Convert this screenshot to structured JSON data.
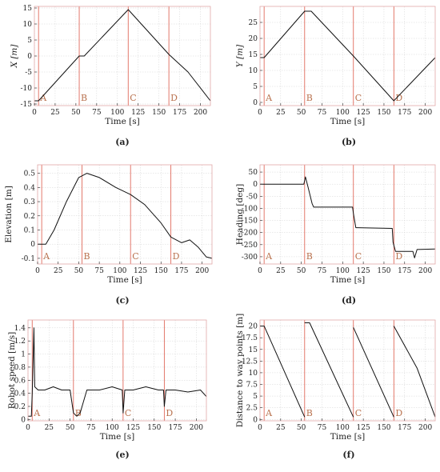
{
  "figure": {
    "panels": [
      {
        "id": "a",
        "caption": "(a)"
      },
      {
        "id": "b",
        "caption": "(b)"
      },
      {
        "id": "c",
        "caption": "(c)"
      },
      {
        "id": "d",
        "caption": "(d)"
      },
      {
        "id": "e",
        "caption": "(e)"
      },
      {
        "id": "f",
        "caption": "(f)"
      }
    ],
    "colors": {
      "series": "#111111",
      "marker_line": "#e06a5c",
      "marker_text": "#b9724f",
      "grid": "#d4d4d4",
      "frame": "#e2a8a8",
      "axis_text": "#222222"
    }
  },
  "chart_data": [
    {
      "panel": "a",
      "type": "line",
      "xlabel": "Time [s]",
      "ylabel": "X [m]",
      "xlim": [
        0,
        212
      ],
      "ylim": [
        -15.5,
        15.5
      ],
      "xticks": [
        0,
        25,
        50,
        75,
        100,
        125,
        150,
        175,
        200
      ],
      "yticks": [
        -15,
        -10,
        -5,
        0,
        5,
        10,
        15
      ],
      "grid": true,
      "markers": [
        {
          "label": "A",
          "x": 5
        },
        {
          "label": "B",
          "x": 54
        },
        {
          "label": "C",
          "x": 113
        },
        {
          "label": "D",
          "x": 162
        }
      ],
      "series": [
        {
          "x": [
            0,
            5,
            54,
            60,
            113,
            162,
            185,
            212
          ],
          "y": [
            -14,
            -14,
            0,
            0,
            14.5,
            0.5,
            -5,
            -14
          ]
        }
      ]
    },
    {
      "panel": "b",
      "type": "line",
      "xlabel": "Time [s]",
      "ylabel": "Y [m]",
      "xlim": [
        0,
        212
      ],
      "ylim": [
        -1,
        30
      ],
      "xticks": [
        0,
        25,
        50,
        75,
        100,
        125,
        150,
        175,
        200
      ],
      "yticks": [
        0,
        5,
        10,
        15,
        20,
        25
      ],
      "grid": true,
      "markers": [
        {
          "label": "A",
          "x": 5
        },
        {
          "label": "B",
          "x": 54
        },
        {
          "label": "C",
          "x": 113
        },
        {
          "label": "D",
          "x": 162
        }
      ],
      "series": [
        {
          "x": [
            0,
            5,
            54,
            62,
            113,
            162,
            212
          ],
          "y": [
            14,
            14,
            28.5,
            28.5,
            14.5,
            0.5,
            14
          ]
        }
      ]
    },
    {
      "panel": "c",
      "type": "line",
      "xlabel": "Time [s]",
      "ylabel": "Elevation [m]",
      "xlim": [
        0,
        212
      ],
      "ylim": [
        -0.14,
        0.56
      ],
      "xticks": [
        0,
        25,
        50,
        75,
        100,
        125,
        150,
        175,
        200
      ],
      "yticks": [
        -0.1,
        0,
        0.1,
        0.2,
        0.3,
        0.4,
        0.5
      ],
      "grid": true,
      "markers": [
        {
          "label": "A",
          "x": 5
        },
        {
          "label": "B",
          "x": 54
        },
        {
          "label": "C",
          "x": 113
        },
        {
          "label": "D",
          "x": 162
        }
      ],
      "series": [
        {
          "x": [
            0,
            10,
            20,
            35,
            50,
            60,
            75,
            95,
            113,
            130,
            150,
            162,
            175,
            185,
            195,
            205,
            212
          ],
          "y": [
            0,
            0,
            0.1,
            0.3,
            0.47,
            0.5,
            0.47,
            0.4,
            0.35,
            0.28,
            0.15,
            0.05,
            0.01,
            0.03,
            -0.02,
            -0.09,
            -0.1
          ]
        }
      ]
    },
    {
      "panel": "d",
      "type": "line",
      "xlabel": "Time [s]",
      "ylabel": "Heading [deg]",
      "xlim": [
        0,
        212
      ],
      "ylim": [
        -330,
        80
      ],
      "xticks": [
        0,
        25,
        50,
        75,
        100,
        125,
        150,
        175,
        200
      ],
      "yticks": [
        -300,
        -250,
        -200,
        -150,
        -100,
        -50,
        0,
        50
      ],
      "grid": true,
      "markers": [
        {
          "label": "A",
          "x": 5
        },
        {
          "label": "B",
          "x": 54
        },
        {
          "label": "C",
          "x": 113
        },
        {
          "label": "D",
          "x": 162
        }
      ],
      "series": [
        {
          "x": [
            0,
            53,
            55,
            58,
            63,
            65,
            112,
            113,
            116,
            118,
            160,
            161,
            164,
            185,
            187,
            190,
            212
          ],
          "y": [
            0,
            0,
            30,
            -10,
            -80,
            -95,
            -95,
            -120,
            -180,
            -180,
            -183,
            -240,
            -278,
            -278,
            -305,
            -270,
            -268
          ]
        }
      ]
    },
    {
      "panel": "e",
      "type": "line",
      "xlabel": "Time [s]",
      "ylabel": "Robot speed [m/s]",
      "xlim": [
        0,
        212
      ],
      "ylim": [
        -0.02,
        1.52
      ],
      "xticks": [
        0,
        25,
        50,
        75,
        100,
        125,
        150,
        175,
        200
      ],
      "yticks": [
        0,
        0.2,
        0.4,
        0.6,
        0.8,
        1,
        1.2,
        1.4
      ],
      "grid": true,
      "markers": [
        {
          "label": "A",
          "x": 5
        },
        {
          "label": "B",
          "x": 54
        },
        {
          "label": "C",
          "x": 113
        },
        {
          "label": "D",
          "x": 162
        }
      ],
      "series": [
        {
          "x": [
            0,
            4,
            5,
            7,
            8,
            12,
            20,
            30,
            40,
            50,
            54,
            58,
            62,
            70,
            85,
            100,
            112,
            113,
            115,
            125,
            140,
            155,
            161,
            162,
            164,
            175,
            190,
            205,
            212
          ],
          "y": [
            0.05,
            0.05,
            0.4,
            1.4,
            0.5,
            0.45,
            0.45,
            0.5,
            0.45,
            0.45,
            0.1,
            0.05,
            0.1,
            0.45,
            0.45,
            0.5,
            0.45,
            0.1,
            0.45,
            0.45,
            0.5,
            0.45,
            0.45,
            0.2,
            0.45,
            0.45,
            0.42,
            0.45,
            0.35
          ]
        }
      ]
    },
    {
      "panel": "f",
      "type": "line",
      "xlabel": "Time [s]",
      "ylabel": "Distance to way points [m]",
      "xlim": [
        0,
        212
      ],
      "ylim": [
        -0.3,
        21.3
      ],
      "xticks": [
        0,
        25,
        50,
        75,
        100,
        125,
        150,
        175,
        200
      ],
      "yticks": [
        0,
        2.5,
        5,
        7.5,
        10,
        12.5,
        15,
        17.5,
        20
      ],
      "grid": true,
      "markers": [
        {
          "label": "A",
          "x": 5
        },
        {
          "label": "B",
          "x": 54
        },
        {
          "label": "C",
          "x": 113
        },
        {
          "label": "D",
          "x": 162
        }
      ],
      "series": [
        {
          "x": [
            0,
            5,
            54
          ],
          "y": [
            20,
            20,
            0.5
          ]
        },
        {
          "x": [
            54,
            60,
            113
          ],
          "y": [
            20.7,
            20.7,
            0.5
          ]
        },
        {
          "x": [
            113,
            162
          ],
          "y": [
            19.7,
            0.5
          ]
        },
        {
          "x": [
            162,
            190,
            212
          ],
          "y": [
            20,
            11,
            0.5
          ]
        }
      ]
    }
  ]
}
